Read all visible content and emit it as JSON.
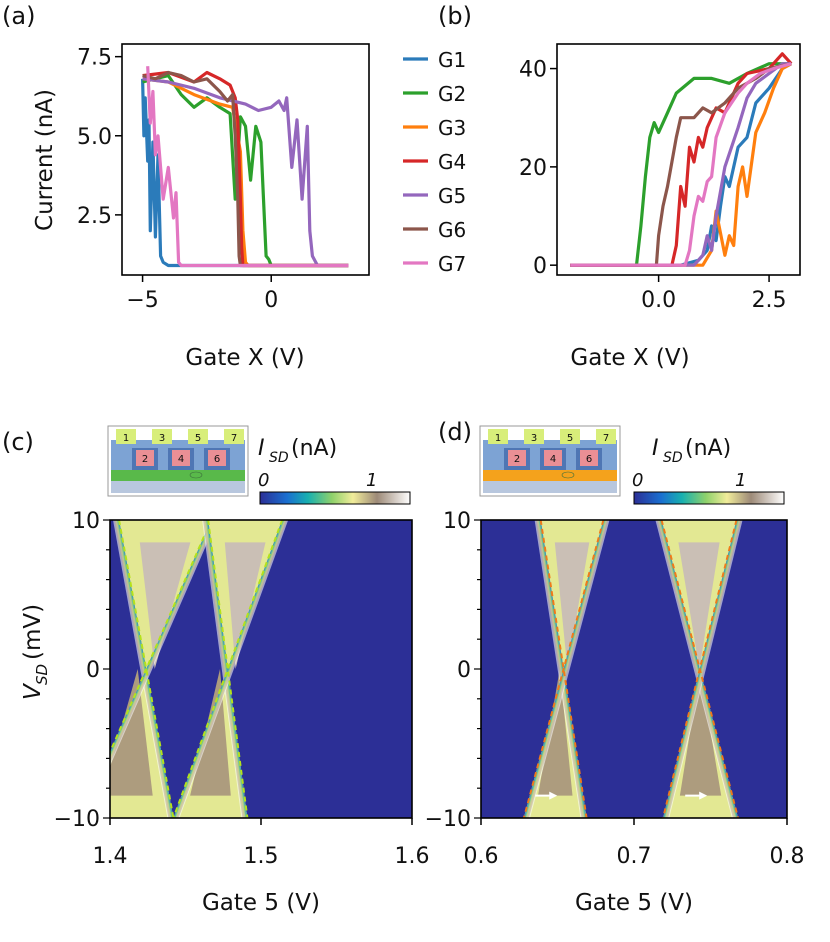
{
  "colors": {
    "G1": "#2b7bba",
    "G2": "#2ca02c",
    "G3": "#ff7f0e",
    "G4": "#d62728",
    "G5": "#9467bd",
    "G6": "#8c564b",
    "G7": "#e377c2",
    "map_bg": "#2c2f96",
    "fit_c": "#b5e21b",
    "fit_d": "#f07a1a"
  },
  "chart_data": [
    {
      "panel": "(a)",
      "type": "line",
      "xlabel": "Gate X (V)",
      "ylabel": "Current (nA)",
      "xlim": [
        -5.8,
        3.8
      ],
      "ylim": [
        0.6,
        7.9
      ],
      "xticks": [
        -5,
        0
      ],
      "xtick_labels": [
        "−5",
        "0"
      ],
      "yticks": [
        2.5,
        5.0,
        7.5
      ],
      "ytick_labels": [
        "2.5",
        "5.0",
        "7.5"
      ],
      "series": [
        {
          "name": "G1",
          "x": [
            -5.0,
            -4.95,
            -4.9,
            -4.8,
            -4.75,
            -4.7,
            -4.6,
            -4.5,
            -4.4,
            -4.3,
            -4.2,
            -4.0,
            3.0
          ],
          "y": [
            6.8,
            5.0,
            6.2,
            4.2,
            5.5,
            2.0,
            4.8,
            1.8,
            4.4,
            1.2,
            1.0,
            0.9,
            0.9
          ]
        },
        {
          "name": "G2",
          "x": [
            -5.0,
            -4.0,
            -3.5,
            -3.0,
            -2.5,
            -2.0,
            -1.6,
            -1.4,
            -1.2,
            -1.0,
            -0.8,
            -0.6,
            -0.4,
            -0.3,
            -0.2,
            -0.1,
            0.0,
            0.3,
            3.0
          ],
          "y": [
            6.7,
            6.9,
            6.3,
            5.9,
            6.2,
            5.9,
            5.7,
            3.0,
            5.6,
            5.3,
            3.6,
            5.3,
            4.8,
            3.0,
            1.2,
            1.1,
            0.9,
            0.9,
            0.9
          ]
        },
        {
          "name": "G3",
          "x": [
            -5.0,
            -4.0,
            -3.0,
            -2.0,
            -1.5,
            -1.2,
            -1.1,
            -1.0,
            -0.9,
            3.0
          ],
          "y": [
            6.8,
            6.7,
            6.3,
            6.0,
            5.9,
            4.5,
            2.0,
            1.0,
            0.9,
            0.9
          ]
        },
        {
          "name": "G4",
          "x": [
            -5.0,
            -4.0,
            -3.0,
            -2.5,
            -2.0,
            -1.6,
            -1.4,
            -1.3,
            -1.2,
            -1.15,
            -1.1,
            3.0
          ],
          "y": [
            6.9,
            7.0,
            6.7,
            7.0,
            6.8,
            6.6,
            6.2,
            5.5,
            3.0,
            1.5,
            0.9,
            0.9
          ]
        },
        {
          "name": "G5",
          "x": [
            -5.0,
            -4.0,
            -3.0,
            -2.0,
            -1.0,
            -0.5,
            0.0,
            0.3,
            0.5,
            0.6,
            0.8,
            1.0,
            1.2,
            1.4,
            1.5,
            1.6,
            1.8,
            2.0,
            3.0
          ],
          "y": [
            6.8,
            6.7,
            6.5,
            6.2,
            6.0,
            5.8,
            5.9,
            6.1,
            5.8,
            6.2,
            4.0,
            5.5,
            3.0,
            5.3,
            2.0,
            1.2,
            0.9,
            0.9,
            0.9
          ]
        },
        {
          "name": "G6",
          "x": [
            -5.0,
            -4.5,
            -4.0,
            -3.5,
            -3.0,
            -2.5,
            -2.0,
            -1.7,
            -1.5,
            -1.4,
            -1.3,
            -1.25,
            -1.2,
            3.0
          ],
          "y": [
            6.9,
            6.8,
            7.0,
            6.9,
            6.7,
            6.8,
            6.4,
            6.1,
            6.3,
            5.0,
            3.0,
            1.2,
            0.9,
            0.9
          ]
        },
        {
          "name": "G7",
          "x": [
            -4.8,
            -4.7,
            -4.6,
            -4.5,
            -4.4,
            -4.2,
            -4.0,
            -3.8,
            -3.7,
            -3.6,
            -3.5,
            3.0
          ],
          "y": [
            7.2,
            5.4,
            6.4,
            4.4,
            5.0,
            3.0,
            4.0,
            2.4,
            3.2,
            1.0,
            0.9,
            0.9
          ]
        }
      ],
      "legend": [
        "G1",
        "G2",
        "G3",
        "G4",
        "G5",
        "G6",
        "G7"
      ]
    },
    {
      "panel": "(b)",
      "type": "line",
      "xlabel": "Gate X (V)",
      "ylabel": "",
      "xlim": [
        -2.3,
        3.2
      ],
      "ylim": [
        -2,
        45
      ],
      "xticks": [
        0.0,
        2.5
      ],
      "xtick_labels": [
        "0.0",
        "2.5"
      ],
      "yticks": [
        0,
        20,
        40
      ],
      "ytick_labels": [
        "0",
        "20",
        "40"
      ],
      "series": [
        {
          "name": "G1",
          "x": [
            -2.0,
            0.5,
            0.9,
            1.1,
            1.2,
            1.3,
            1.4,
            1.5,
            1.6,
            1.8,
            2.0,
            2.2,
            2.5,
            2.8,
            3.0
          ],
          "y": [
            0,
            0,
            1,
            3,
            8,
            5,
            12,
            18,
            16,
            24,
            26,
            33,
            36,
            40,
            41
          ]
        },
        {
          "name": "G2",
          "x": [
            -2.0,
            -0.5,
            -0.4,
            -0.3,
            -0.2,
            -0.1,
            0.0,
            0.2,
            0.4,
            0.8,
            1.2,
            1.6,
            2.0,
            2.5,
            3.0
          ],
          "y": [
            0,
            0,
            8,
            18,
            26,
            29,
            27,
            31,
            35,
            38,
            38,
            37,
            39,
            41,
            41
          ]
        },
        {
          "name": "G3",
          "x": [
            -2.0,
            1.0,
            1.2,
            1.3,
            1.5,
            1.6,
            1.7,
            1.8,
            1.9,
            2.0,
            2.2,
            2.4,
            2.6,
            2.8,
            3.0
          ],
          "y": [
            0,
            0,
            3,
            11,
            2,
            6,
            4,
            16,
            20,
            14,
            27,
            31,
            36,
            40,
            41
          ]
        },
        {
          "name": "G4",
          "x": [
            -2.0,
            0.3,
            0.4,
            0.5,
            0.6,
            0.7,
            0.8,
            0.9,
            1.0,
            1.1,
            1.3,
            1.5,
            1.8,
            2.0,
            2.5,
            2.8,
            3.0
          ],
          "y": [
            0,
            0,
            4,
            16,
            12,
            24,
            21,
            26,
            24,
            28,
            32,
            31,
            37,
            39,
            40,
            43,
            41
          ]
        },
        {
          "name": "G5",
          "x": [
            -2.0,
            0.8,
            1.0,
            1.1,
            1.2,
            1.3,
            1.5,
            1.8,
            2.0,
            2.2,
            2.5,
            2.8,
            3.0
          ],
          "y": [
            0,
            0,
            2,
            6,
            3,
            10,
            20,
            28,
            34,
            37,
            39,
            41,
            41
          ]
        },
        {
          "name": "G6",
          "x": [
            -2.0,
            -0.05,
            0.0,
            0.1,
            0.2,
            0.3,
            0.4,
            0.5,
            0.8,
            1.0,
            1.2,
            1.5,
            1.8,
            2.2,
            2.5,
            3.0
          ],
          "y": [
            0,
            0,
            6,
            12,
            16,
            21,
            26,
            30,
            30,
            32,
            31,
            33,
            36,
            38,
            40,
            41
          ]
        },
        {
          "name": "G7",
          "x": [
            -2.0,
            0.6,
            0.7,
            0.8,
            0.9,
            1.0,
            1.1,
            1.2,
            1.3,
            1.5,
            1.8,
            2.0,
            2.3,
            2.6,
            3.0
          ],
          "y": [
            0,
            0,
            3,
            10,
            14,
            13,
            17,
            18,
            26,
            31,
            35,
            37,
            39,
            40,
            41
          ]
        }
      ]
    },
    {
      "panel": "(c)",
      "type": "heatmap",
      "xlabel": "Gate 5 (V)",
      "ylabel_main": "V",
      "ylabel_sub": "SD",
      "ylabel_unit": "(mV)",
      "xlim": [
        1.4,
        1.6
      ],
      "ylim": [
        -10,
        10
      ],
      "xticks": [
        1.4,
        1.5,
        1.6
      ],
      "xtick_labels": [
        "1.4",
        "1.5",
        "1.6"
      ],
      "yticks": [
        -10,
        0,
        10
      ],
      "ytick_labels": [
        "−10",
        "0",
        "10"
      ],
      "colorbar": {
        "label_main": "I",
        "label_sub": "SD",
        "label_unit": "(nA)",
        "ticks": [
          "0",
          "1"
        ]
      },
      "diamonds": [
        {
          "center": 1.424,
          "slope_l": -0.0018,
          "slope_r": 0.0043
        },
        {
          "center": 1.478,
          "slope_l": -0.0013,
          "slope_r": 0.0036
        }
      ]
    },
    {
      "panel": "(d)",
      "type": "heatmap",
      "xlabel": "Gate 5 (V)",
      "xlim": [
        0.6,
        0.8
      ],
      "ylim": [
        -10,
        10
      ],
      "xticks": [
        0.6,
        0.7,
        0.8
      ],
      "xtick_labels": [
        "0.6",
        "0.7",
        "0.8"
      ],
      "yticks": [
        -10,
        0,
        10
      ],
      "ytick_labels": [
        "−10",
        "0",
        "10"
      ],
      "colorbar": {
        "label_main": "I",
        "label_sub": "SD",
        "label_unit": "(nA)",
        "ticks": [
          "0",
          "1"
        ]
      },
      "diamonds": [
        {
          "center": 0.654,
          "slope_l": -0.0015,
          "slope_r": 0.0026
        },
        {
          "center": 0.743,
          "slope_l": -0.0025,
          "slope_r": 0.0024
        }
      ]
    }
  ],
  "panel_labels": {
    "a": "(a)",
    "b": "(b)",
    "c": "(c)",
    "d": "(d)"
  },
  "inset_gates": [
    "1",
    "2",
    "3",
    "4",
    "5",
    "6",
    "7"
  ]
}
